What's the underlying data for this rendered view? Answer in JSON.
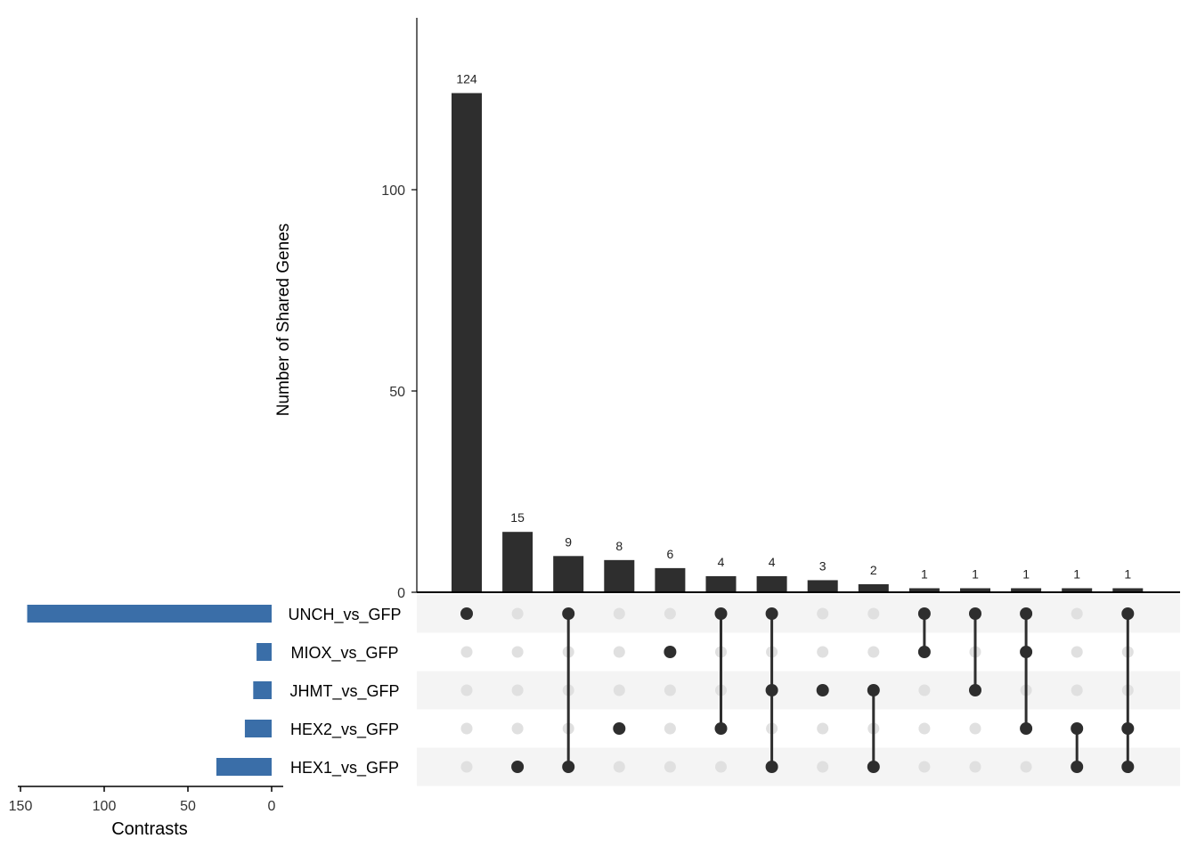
{
  "chart_data": {
    "type": "upset",
    "intersections": {
      "ylabel": "Number of Shared Genes",
      "ylim": [
        0,
        135
      ],
      "yticks": [
        0,
        50,
        100
      ],
      "bar_color": "#2e2e2e",
      "values": [
        124,
        15,
        9,
        8,
        6,
        4,
        4,
        3,
        2,
        1,
        1,
        1,
        1,
        1
      ],
      "labels": [
        "124",
        "15",
        "9",
        "8",
        "6",
        "4",
        "4",
        "3",
        "2",
        "1",
        "1",
        "1",
        "1",
        "1"
      ],
      "membership": [
        [
          "UNCH_vs_GFP"
        ],
        [
          "HEX1_vs_GFP"
        ],
        [
          "UNCH_vs_GFP",
          "HEX1_vs_GFP"
        ],
        [
          "HEX2_vs_GFP"
        ],
        [
          "MIOX_vs_GFP"
        ],
        [
          "UNCH_vs_GFP",
          "HEX2_vs_GFP"
        ],
        [
          "UNCH_vs_GFP",
          "JHMT_vs_GFP",
          "HEX1_vs_GFP"
        ],
        [
          "JHMT_vs_GFP"
        ],
        [
          "JHMT_vs_GFP",
          "HEX1_vs_GFP"
        ],
        [
          "UNCH_vs_GFP",
          "MIOX_vs_GFP"
        ],
        [
          "UNCH_vs_GFP",
          "JHMT_vs_GFP"
        ],
        [
          "UNCH_vs_GFP",
          "MIOX_vs_GFP",
          "HEX2_vs_GFP"
        ],
        [
          "HEX2_vs_GFP",
          "HEX1_vs_GFP"
        ],
        [
          "UNCH_vs_GFP",
          "HEX2_vs_GFP",
          "HEX1_vs_GFP"
        ]
      ]
    },
    "sets": {
      "xlabel": "Contrasts",
      "names": [
        "UNCH_vs_GFP",
        "MIOX_vs_GFP",
        "JHMT_vs_GFP",
        "HEX2_vs_GFP",
        "HEX1_vs_GFP"
      ],
      "values": [
        146,
        9,
        11,
        16,
        33
      ],
      "xlim": [
        150,
        0
      ],
      "xticks": [
        150,
        100,
        50,
        0
      ],
      "bar_color": "#3a6ea8"
    },
    "matrix_colors": {
      "active": "#2e2e2e",
      "inactive": "#e0e0e0",
      "stripe": "#f4f4f4"
    }
  }
}
